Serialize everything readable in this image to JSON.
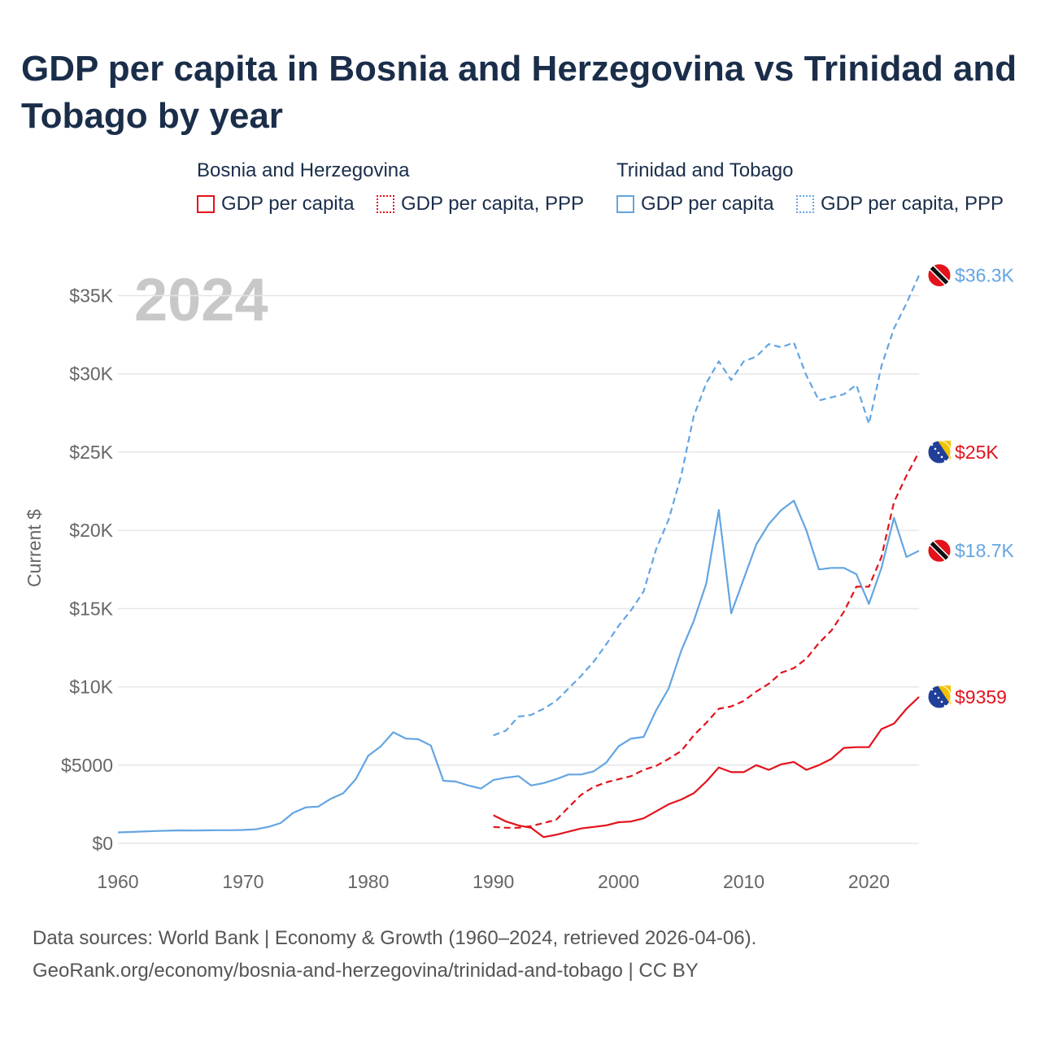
{
  "title": "GDP per capita in Bosnia and Herzegovina vs Trinidad and Tobago by year",
  "legend": {
    "groups": [
      {
        "name": "Bosnia and Herzegovina",
        "items": [
          {
            "label": "GDP per capita"
          },
          {
            "label": "GDP per capita, PPP"
          }
        ]
      },
      {
        "name": "Trinidad and Tobago",
        "items": [
          {
            "label": "GDP per capita"
          },
          {
            "label": "GDP per capita, PPP"
          }
        ]
      }
    ]
  },
  "footer": {
    "line1": "Data sources: World Bank | Economy & Growth (1960–2024, retrieved 2026-04-06).",
    "line2": "GeoRank.org/economy/bosnia-and-herzegovina/trinidad-and-tobago | CC BY"
  },
  "colors": {
    "bosnia": "#e3121b",
    "trinidad": "#63a5e2",
    "grid": "#e6e6e6",
    "axis_text": "#666666",
    "year_watermark": "#c8c8c8"
  },
  "chart_data": {
    "type": "line",
    "title": "GDP per capita in Bosnia and Herzegovina vs Trinidad and Tobago by year",
    "xlabel": "",
    "ylabel": "Current $",
    "year_label": "2024",
    "xlim": [
      1960,
      2024
    ],
    "ylim": [
      0,
      37000
    ],
    "xticks": [
      1960,
      1970,
      1980,
      1990,
      2000,
      2010,
      2020
    ],
    "xtick_labels": [
      "1960",
      "1970",
      "1980",
      "1990",
      "2000",
      "2010",
      "2020"
    ],
    "yticks": [
      0,
      5000,
      10000,
      15000,
      20000,
      25000,
      30000,
      35000
    ],
    "ytick_labels": [
      "$0",
      "$5000",
      "$10K",
      "$15K",
      "$20K",
      "$25K",
      "$30K",
      "$35K"
    ],
    "grid": true,
    "series": [
      {
        "name": "Trinidad and Tobago GDP per capita",
        "country": "Trinidad and Tobago",
        "metric": "GDP per capita",
        "color": "#63a5e2",
        "dash": "solid",
        "end_label": "$18.7K",
        "flag": "trinidad-flag-icon",
        "points": [
          [
            1960,
            700
          ],
          [
            1961,
            730
          ],
          [
            1962,
            760
          ],
          [
            1963,
            790
          ],
          [
            1964,
            810
          ],
          [
            1965,
            830
          ],
          [
            1966,
            820
          ],
          [
            1967,
            830
          ],
          [
            1968,
            840
          ],
          [
            1969,
            840
          ],
          [
            1970,
            860
          ],
          [
            1971,
            900
          ],
          [
            1972,
            1050
          ],
          [
            1973,
            1300
          ],
          [
            1974,
            1950
          ],
          [
            1975,
            2300
          ],
          [
            1976,
            2350
          ],
          [
            1977,
            2850
          ],
          [
            1978,
            3200
          ],
          [
            1979,
            4100
          ],
          [
            1980,
            5600
          ],
          [
            1981,
            6200
          ],
          [
            1982,
            7100
          ],
          [
            1983,
            6700
          ],
          [
            1984,
            6650
          ],
          [
            1985,
            6250
          ],
          [
            1986,
            4000
          ],
          [
            1987,
            3950
          ],
          [
            1988,
            3700
          ],
          [
            1989,
            3500
          ],
          [
            1990,
            4050
          ],
          [
            1991,
            4200
          ],
          [
            1992,
            4300
          ],
          [
            1993,
            3700
          ],
          [
            1994,
            3850
          ],
          [
            1995,
            4100
          ],
          [
            1996,
            4400
          ],
          [
            1997,
            4400
          ],
          [
            1998,
            4600
          ],
          [
            1999,
            5150
          ],
          [
            2000,
            6200
          ],
          [
            2001,
            6700
          ],
          [
            2002,
            6800
          ],
          [
            2003,
            8500
          ],
          [
            2004,
            9900
          ],
          [
            2005,
            12300
          ],
          [
            2006,
            14200
          ],
          [
            2007,
            16600
          ],
          [
            2008,
            21300
          ],
          [
            2009,
            14700
          ],
          [
            2010,
            16900
          ],
          [
            2011,
            19100
          ],
          [
            2012,
            20400
          ],
          [
            2013,
            21300
          ],
          [
            2014,
            21900
          ],
          [
            2015,
            20000
          ],
          [
            2016,
            17500
          ],
          [
            2017,
            17600
          ],
          [
            2018,
            17600
          ],
          [
            2019,
            17200
          ],
          [
            2020,
            15300
          ],
          [
            2021,
            17600
          ],
          [
            2022,
            20800
          ],
          [
            2023,
            18300
          ],
          [
            2024,
            18700
          ]
        ]
      },
      {
        "name": "Trinidad and Tobago GDP per capita, PPP",
        "country": "Trinidad and Tobago",
        "metric": "GDP per capita, PPP",
        "color": "#63a5e2",
        "dash": "dashed",
        "end_label": "$36.3K",
        "flag": "trinidad-flag-icon",
        "points": [
          [
            1990,
            6900
          ],
          [
            1991,
            7200
          ],
          [
            1992,
            8100
          ],
          [
            1993,
            8200
          ],
          [
            1994,
            8600
          ],
          [
            1995,
            9100
          ],
          [
            1996,
            9900
          ],
          [
            1997,
            10700
          ],
          [
            1998,
            11600
          ],
          [
            1999,
            12700
          ],
          [
            2000,
            13900
          ],
          [
            2001,
            14900
          ],
          [
            2002,
            16100
          ],
          [
            2003,
            18800
          ],
          [
            2004,
            20700
          ],
          [
            2005,
            23500
          ],
          [
            2006,
            27300
          ],
          [
            2007,
            29400
          ],
          [
            2008,
            30800
          ],
          [
            2009,
            29600
          ],
          [
            2010,
            30800
          ],
          [
            2011,
            31100
          ],
          [
            2012,
            31900
          ],
          [
            2013,
            31700
          ],
          [
            2014,
            32000
          ],
          [
            2015,
            29900
          ],
          [
            2016,
            28300
          ],
          [
            2017,
            28500
          ],
          [
            2018,
            28700
          ],
          [
            2019,
            29300
          ],
          [
            2020,
            26800
          ],
          [
            2021,
            30500
          ],
          [
            2022,
            32900
          ],
          [
            2023,
            34500
          ],
          [
            2024,
            36300
          ]
        ]
      },
      {
        "name": "Bosnia and Herzegovina GDP per capita",
        "country": "Bosnia and Herzegovina",
        "metric": "GDP per capita",
        "color": "#e3121b",
        "dash": "solid",
        "end_label": "$9359",
        "flag": "bosnia-flag-icon",
        "points": [
          [
            1990,
            1800
          ],
          [
            1991,
            1400
          ],
          [
            1992,
            1150
          ],
          [
            1993,
            1000
          ],
          [
            1994,
            400
          ],
          [
            1995,
            550
          ],
          [
            1996,
            750
          ],
          [
            1997,
            950
          ],
          [
            1998,
            1050
          ],
          [
            1999,
            1150
          ],
          [
            2000,
            1350
          ],
          [
            2001,
            1400
          ],
          [
            2002,
            1600
          ],
          [
            2003,
            2050
          ],
          [
            2004,
            2500
          ],
          [
            2005,
            2800
          ],
          [
            2006,
            3200
          ],
          [
            2007,
            3950
          ],
          [
            2008,
            4850
          ],
          [
            2009,
            4550
          ],
          [
            2010,
            4550
          ],
          [
            2011,
            5000
          ],
          [
            2012,
            4700
          ],
          [
            2013,
            5050
          ],
          [
            2014,
            5200
          ],
          [
            2015,
            4700
          ],
          [
            2016,
            5000
          ],
          [
            2017,
            5400
          ],
          [
            2018,
            6100
          ],
          [
            2019,
            6150
          ],
          [
            2020,
            6150
          ],
          [
            2021,
            7300
          ],
          [
            2022,
            7650
          ],
          [
            2023,
            8600
          ],
          [
            2024,
            9359
          ]
        ]
      },
      {
        "name": "Bosnia and Herzegovina GDP per capita, PPP",
        "country": "Bosnia and Herzegovina",
        "metric": "GDP per capita, PPP",
        "color": "#e3121b",
        "dash": "dashed",
        "end_label": "$25K",
        "flag": "bosnia-flag-icon",
        "points": [
          [
            1990,
            1050
          ],
          [
            1991,
            1000
          ],
          [
            1992,
            1000
          ],
          [
            1993,
            1100
          ],
          [
            1994,
            1300
          ],
          [
            1995,
            1500
          ],
          [
            1996,
            2300
          ],
          [
            1997,
            3100
          ],
          [
            1998,
            3600
          ],
          [
            1999,
            3900
          ],
          [
            2000,
            4100
          ],
          [
            2001,
            4300
          ],
          [
            2002,
            4700
          ],
          [
            2003,
            4950
          ],
          [
            2004,
            5400
          ],
          [
            2005,
            5900
          ],
          [
            2006,
            6900
          ],
          [
            2007,
            7700
          ],
          [
            2008,
            8600
          ],
          [
            2009,
            8750
          ],
          [
            2010,
            9100
          ],
          [
            2011,
            9700
          ],
          [
            2012,
            10200
          ],
          [
            2013,
            10900
          ],
          [
            2014,
            11200
          ],
          [
            2015,
            11800
          ],
          [
            2016,
            12800
          ],
          [
            2017,
            13600
          ],
          [
            2018,
            14800
          ],
          [
            2019,
            16400
          ],
          [
            2020,
            16400
          ],
          [
            2021,
            18300
          ],
          [
            2022,
            21800
          ],
          [
            2023,
            23500
          ],
          [
            2024,
            25000
          ]
        ]
      }
    ]
  }
}
